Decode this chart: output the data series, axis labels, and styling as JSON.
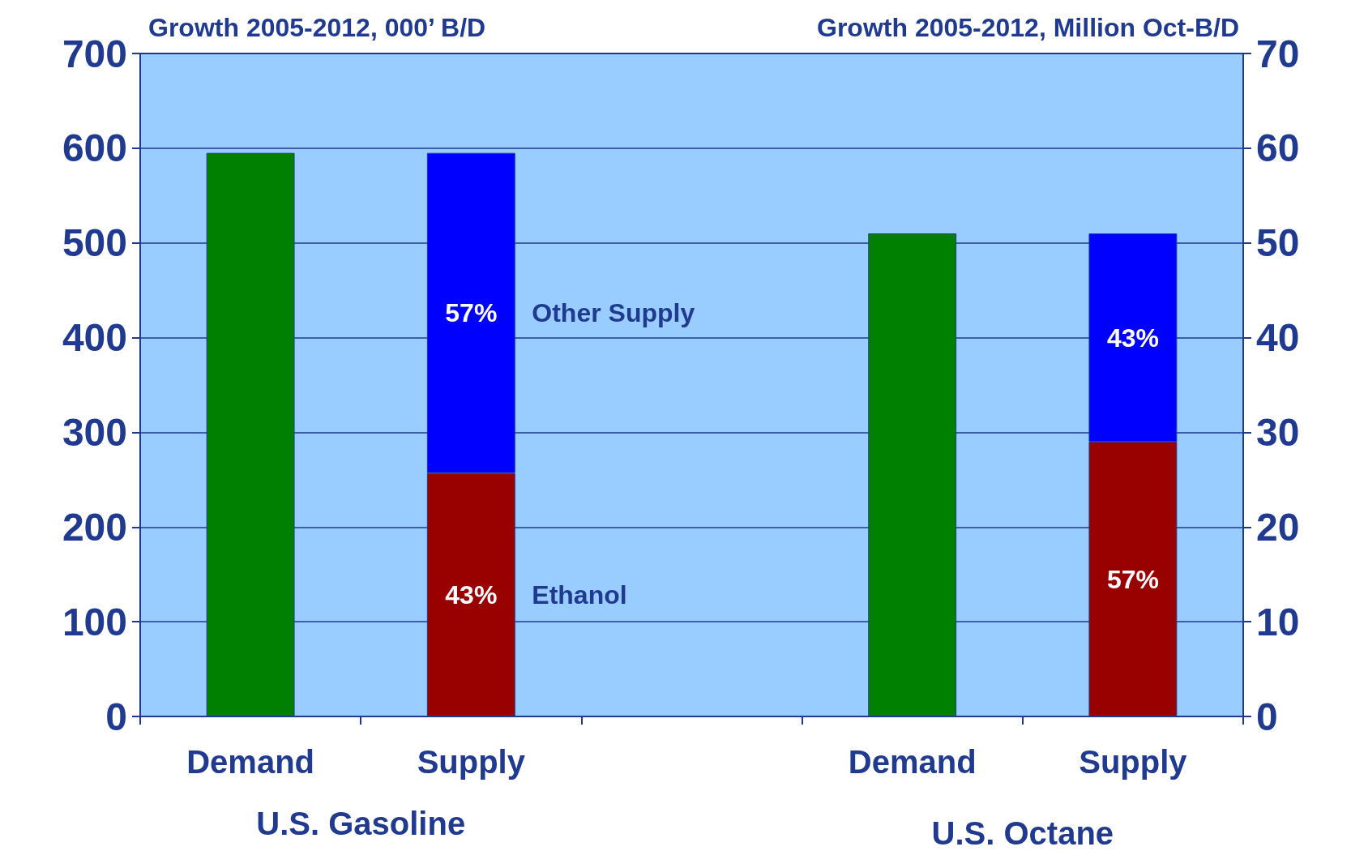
{
  "chart_data": {
    "type": "bar",
    "stacked": true,
    "ylabel": "Growth 2005-2012, 000’ B/D",
    "y2label": "Growth 2005-2012, Million Oct-B/D",
    "categories": [
      "Demand",
      "Supply",
      null,
      "Demand",
      "Supply"
    ],
    "series": [
      {
        "color": "#008000",
        "values": [
          595,
          null,
          null,
          null,
          null
        ]
      },
      {
        "color": "#008000",
        "axis": "y2",
        "values": [
          null,
          null,
          null,
          51,
          null
        ]
      },
      {
        "name": "Ethanol",
        "color": "#990000",
        "values": [
          null,
          257,
          null,
          null,
          null
        ]
      },
      {
        "color": "#990000",
        "axis": "y2",
        "values": [
          null,
          null,
          null,
          null,
          29
        ]
      },
      {
        "name": "Other Supply",
        "color": "#0000ff",
        "values": [
          null,
          338,
          null,
          null,
          null
        ]
      },
      {
        "color": "#0000ff",
        "axis": "y2",
        "values": [
          null,
          null,
          null,
          null,
          22
        ]
      }
    ],
    "ylim": [
      0,
      700
    ],
    "yticks": [
      0,
      100,
      200,
      300,
      400,
      500,
      600,
      700
    ],
    "y2lim": [
      0,
      70
    ],
    "y2ticks": [
      0,
      10,
      20,
      30,
      40,
      50,
      60,
      70
    ],
    "grid": "y",
    "legend": false,
    "annotations": [
      "U.S. Gasoline",
      "U.S. Octane",
      "43%",
      "57%",
      "57%",
      "43%"
    ]
  }
}
